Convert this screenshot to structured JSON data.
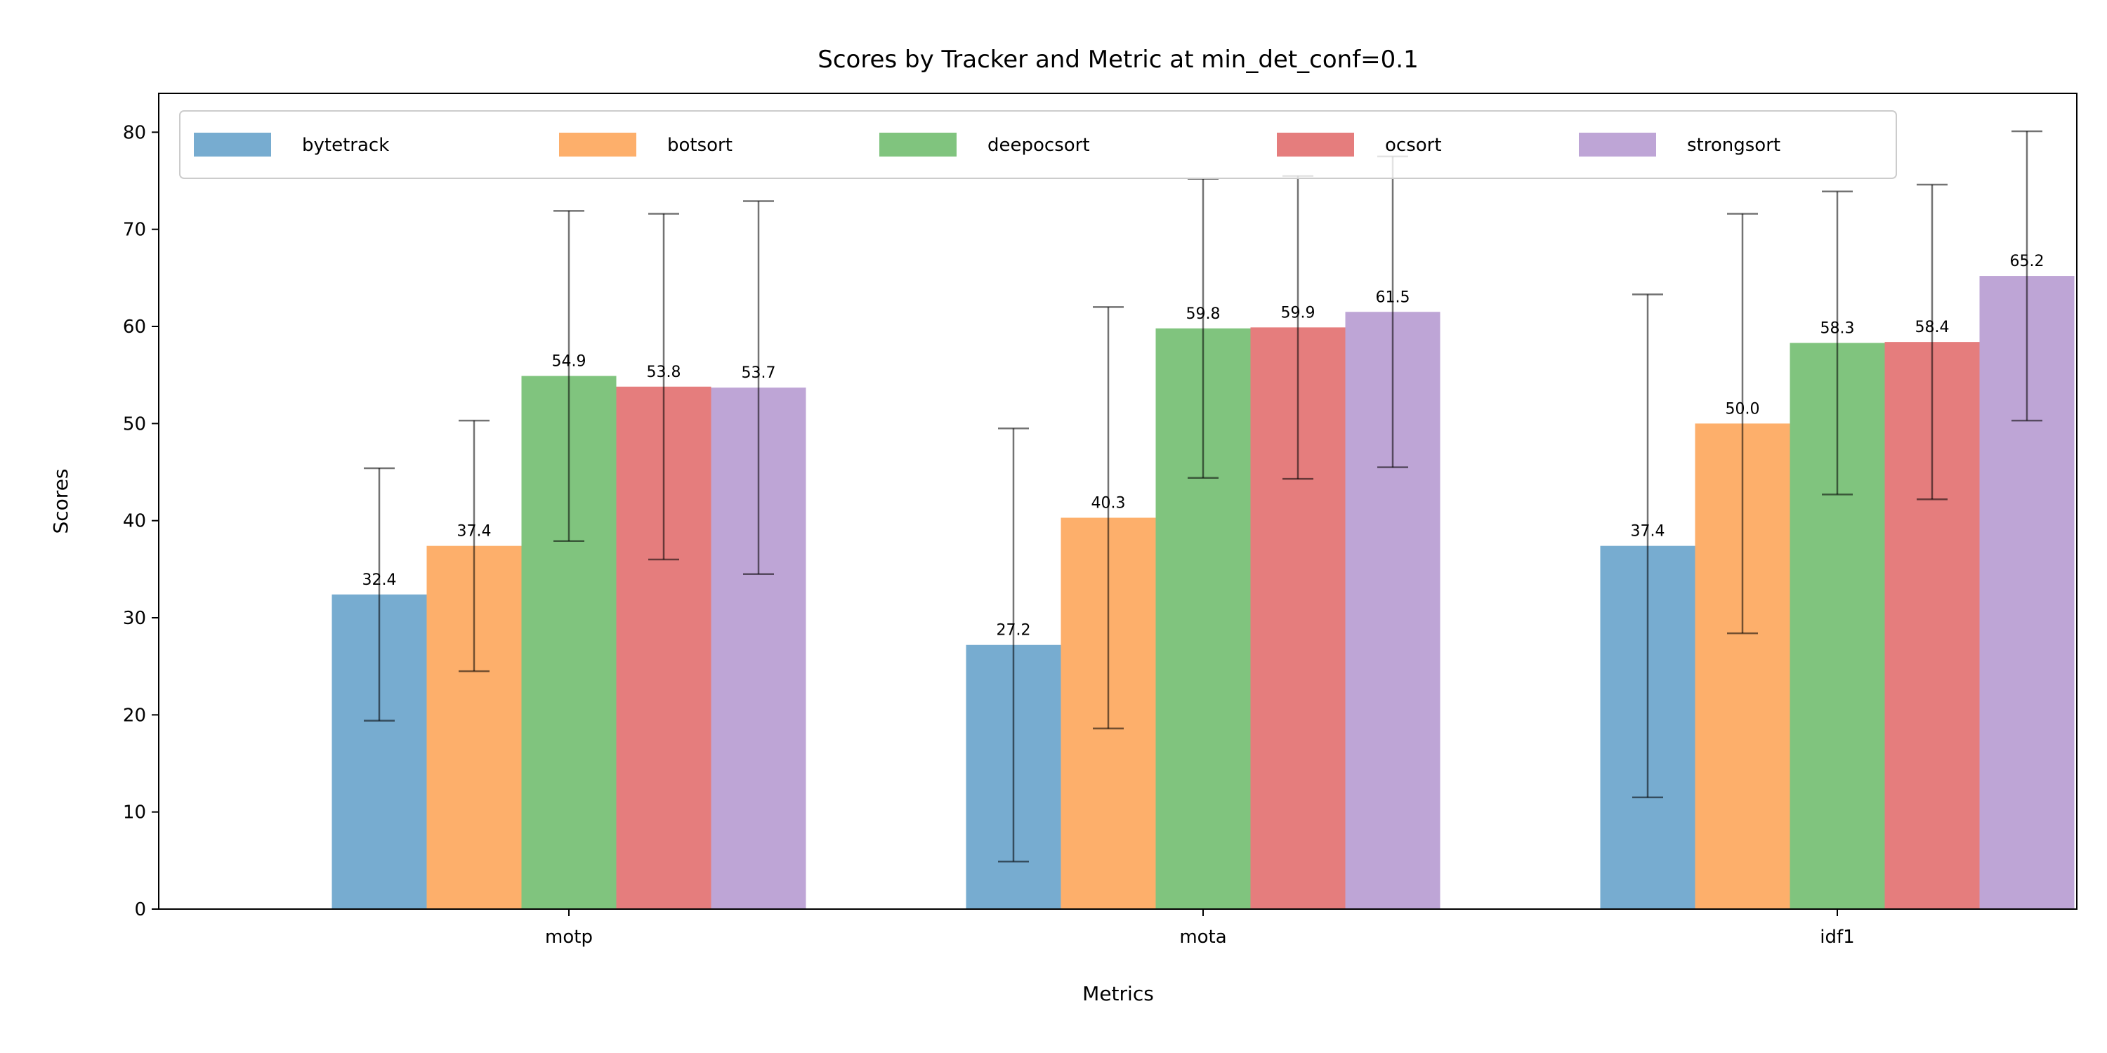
{
  "chart_data": {
    "type": "bar",
    "title": "Scores by Tracker and Metric at min_det_conf=0.1",
    "xlabel": "Metrics",
    "ylabel": "Scores",
    "categories": [
      "motp",
      "mota",
      "idf1"
    ],
    "ylim": [
      0,
      84
    ],
    "yticks": [
      0,
      10,
      20,
      30,
      40,
      50,
      60,
      70,
      80
    ],
    "grid": false,
    "legend": {
      "placement": "top-left",
      "columns": 5
    },
    "series": [
      {
        "name": "bytetrack",
        "color": "#77acd0",
        "values": [
          32.4,
          27.2,
          37.4
        ],
        "errors": [
          13.0,
          22.3,
          25.9
        ],
        "labels": [
          "32.4",
          "27.2",
          "37.4"
        ]
      },
      {
        "name": "botsort",
        "color": "#fdaf6b",
        "values": [
          37.4,
          40.3,
          50.0
        ],
        "errors": [
          12.9,
          21.7,
          21.6
        ],
        "labels": [
          "37.4",
          "40.3",
          "50.0"
        ]
      },
      {
        "name": "deepocsort",
        "color": "#80c47e",
        "values": [
          54.9,
          59.8,
          58.3
        ],
        "errors": [
          17.0,
          15.4,
          15.6
        ],
        "labels": [
          "54.9",
          "59.8",
          "58.3"
        ]
      },
      {
        "name": "ocsort",
        "color": "#e57d7d",
        "values": [
          53.8,
          59.9,
          58.4
        ],
        "errors": [
          17.8,
          15.6,
          16.2
        ],
        "labels": [
          "53.8",
          "59.9",
          "58.4"
        ]
      },
      {
        "name": "strongsort",
        "color": "#bea5d6",
        "values": [
          53.7,
          61.5,
          65.2
        ],
        "errors": [
          19.2,
          16.0,
          14.9
        ],
        "labels": [
          "53.7",
          "61.5",
          "65.2"
        ]
      }
    ]
  }
}
